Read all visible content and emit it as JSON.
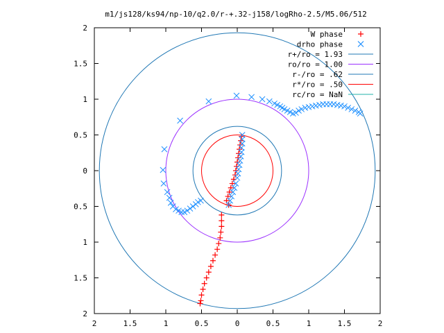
{
  "chart_data": {
    "type": "scatter",
    "title": "m1/js128/ks94/np-10/q2.0/r-+.32-j158/logRho-2.5/M5.06/512",
    "xlabel": "",
    "ylabel": "",
    "xlim": [
      -2,
      2
    ],
    "ylim": [
      -2,
      2
    ],
    "grid": false,
    "legend_position": "top-right",
    "x_tick_labels": [
      "2",
      "1.5",
      "1",
      "0.5",
      "0",
      "0.5",
      "1",
      "1.5",
      "2"
    ],
    "y_tick_labels": [
      "2",
      "1.5",
      "1",
      "0.5",
      "0",
      "0.5",
      "1",
      "1.5",
      "2"
    ],
    "series": [
      {
        "name": "W phase",
        "marker": "plus",
        "color": "#ff0000",
        "points": [
          [
            0.06,
            0.48
          ],
          [
            0.05,
            0.42
          ],
          [
            0.04,
            0.36
          ],
          [
            0.03,
            0.3
          ],
          [
            0.02,
            0.24
          ],
          [
            0.01,
            0.18
          ],
          [
            0.0,
            0.12
          ],
          [
            -0.01,
            0.06
          ],
          [
            -0.02,
            0.0
          ],
          [
            -0.03,
            -0.06
          ],
          [
            -0.05,
            -0.12
          ],
          [
            -0.07,
            -0.18
          ],
          [
            -0.09,
            -0.24
          ],
          [
            -0.11,
            -0.3
          ],
          [
            -0.13,
            -0.36
          ],
          [
            -0.15,
            -0.42
          ],
          [
            -0.12,
            -0.48
          ],
          [
            -0.22,
            -0.62
          ],
          [
            -0.22,
            -0.7
          ],
          [
            -0.22,
            -0.78
          ],
          [
            -0.23,
            -0.86
          ],
          [
            -0.24,
            -0.94
          ],
          [
            -0.26,
            -1.02
          ],
          [
            -0.28,
            -1.1
          ],
          [
            -0.31,
            -1.18
          ],
          [
            -0.34,
            -1.26
          ],
          [
            -0.37,
            -1.34
          ],
          [
            -0.4,
            -1.42
          ],
          [
            -0.43,
            -1.5
          ],
          [
            -0.46,
            -1.58
          ],
          [
            -0.48,
            -1.66
          ],
          [
            -0.5,
            -1.74
          ],
          [
            -0.51,
            -1.82
          ],
          [
            -0.52,
            -1.86
          ]
        ]
      },
      {
        "name": "drho phase",
        "marker": "cross",
        "color": "#1e90ff",
        "points": [
          [
            -1.04,
            0.01
          ],
          [
            -1.03,
            -0.18
          ],
          [
            -0.98,
            -0.3
          ],
          [
            -0.95,
            -0.38
          ],
          [
            -0.93,
            -0.45
          ],
          [
            -0.9,
            -0.5
          ],
          [
            -0.86,
            -0.54
          ],
          [
            -0.82,
            -0.56
          ],
          [
            -0.78,
            -0.58
          ],
          [
            -0.74,
            -0.58
          ],
          [
            -0.7,
            -0.56
          ],
          [
            -0.66,
            -0.53
          ],
          [
            -0.62,
            -0.5
          ],
          [
            -0.58,
            -0.47
          ],
          [
            -0.55,
            -0.44
          ],
          [
            -0.51,
            -0.42
          ],
          [
            -1.02,
            0.3
          ],
          [
            -0.8,
            0.7
          ],
          [
            -0.4,
            0.97
          ],
          [
            -0.01,
            1.05
          ],
          [
            0.2,
            1.03
          ],
          [
            0.35,
            1.0
          ],
          [
            0.45,
            0.97
          ],
          [
            0.52,
            0.94
          ],
          [
            0.56,
            0.92
          ],
          [
            0.6,
            0.9
          ],
          [
            0.63,
            0.88
          ],
          [
            0.66,
            0.86
          ],
          [
            0.7,
            0.84
          ],
          [
            0.74,
            0.82
          ],
          [
            0.78,
            0.8
          ],
          [
            0.82,
            0.81
          ],
          [
            0.86,
            0.84
          ],
          [
            0.9,
            0.86
          ],
          [
            0.95,
            0.88
          ],
          [
            1.0,
            0.89
          ],
          [
            1.05,
            0.9
          ],
          [
            1.1,
            0.91
          ],
          [
            1.15,
            0.92
          ],
          [
            1.2,
            0.93
          ],
          [
            1.25,
            0.93
          ],
          [
            1.3,
            0.93
          ],
          [
            1.35,
            0.93
          ],
          [
            1.4,
            0.92
          ],
          [
            1.45,
            0.91
          ],
          [
            1.5,
            0.9
          ],
          [
            1.55,
            0.88
          ],
          [
            1.6,
            0.86
          ],
          [
            1.65,
            0.84
          ],
          [
            1.7,
            0.82
          ],
          [
            1.72,
            0.8
          ],
          [
            -0.12,
            -0.48
          ],
          [
            -0.1,
            -0.42
          ],
          [
            -0.08,
            -0.36
          ],
          [
            -0.06,
            -0.3
          ],
          [
            -0.04,
            -0.24
          ],
          [
            -0.02,
            -0.18
          ],
          [
            0.0,
            -0.1
          ],
          [
            0.01,
            -0.04
          ],
          [
            0.02,
            0.02
          ],
          [
            0.03,
            0.08
          ],
          [
            0.04,
            0.14
          ],
          [
            0.05,
            0.2
          ],
          [
            0.06,
            0.26
          ],
          [
            0.06,
            0.32
          ],
          [
            0.07,
            0.38
          ],
          [
            0.07,
            0.44
          ],
          [
            0.07,
            0.5
          ]
        ]
      }
    ],
    "circles": [
      {
        "name": "r+/ro = 1.93",
        "radius": 1.93,
        "color": "#1f77b4"
      },
      {
        "name": "ro/ro = 1.00",
        "radius": 1.0,
        "color": "#9b30ff"
      },
      {
        "name": "r-/ro = .62",
        "radius": 0.62,
        "color": "#1f77b4"
      },
      {
        "name": "r*/ro = .50",
        "radius": 0.5,
        "color": "#ff0000"
      },
      {
        "name": "rc/ro = NaN",
        "radius": null,
        "color": "#20b2aa"
      }
    ]
  }
}
